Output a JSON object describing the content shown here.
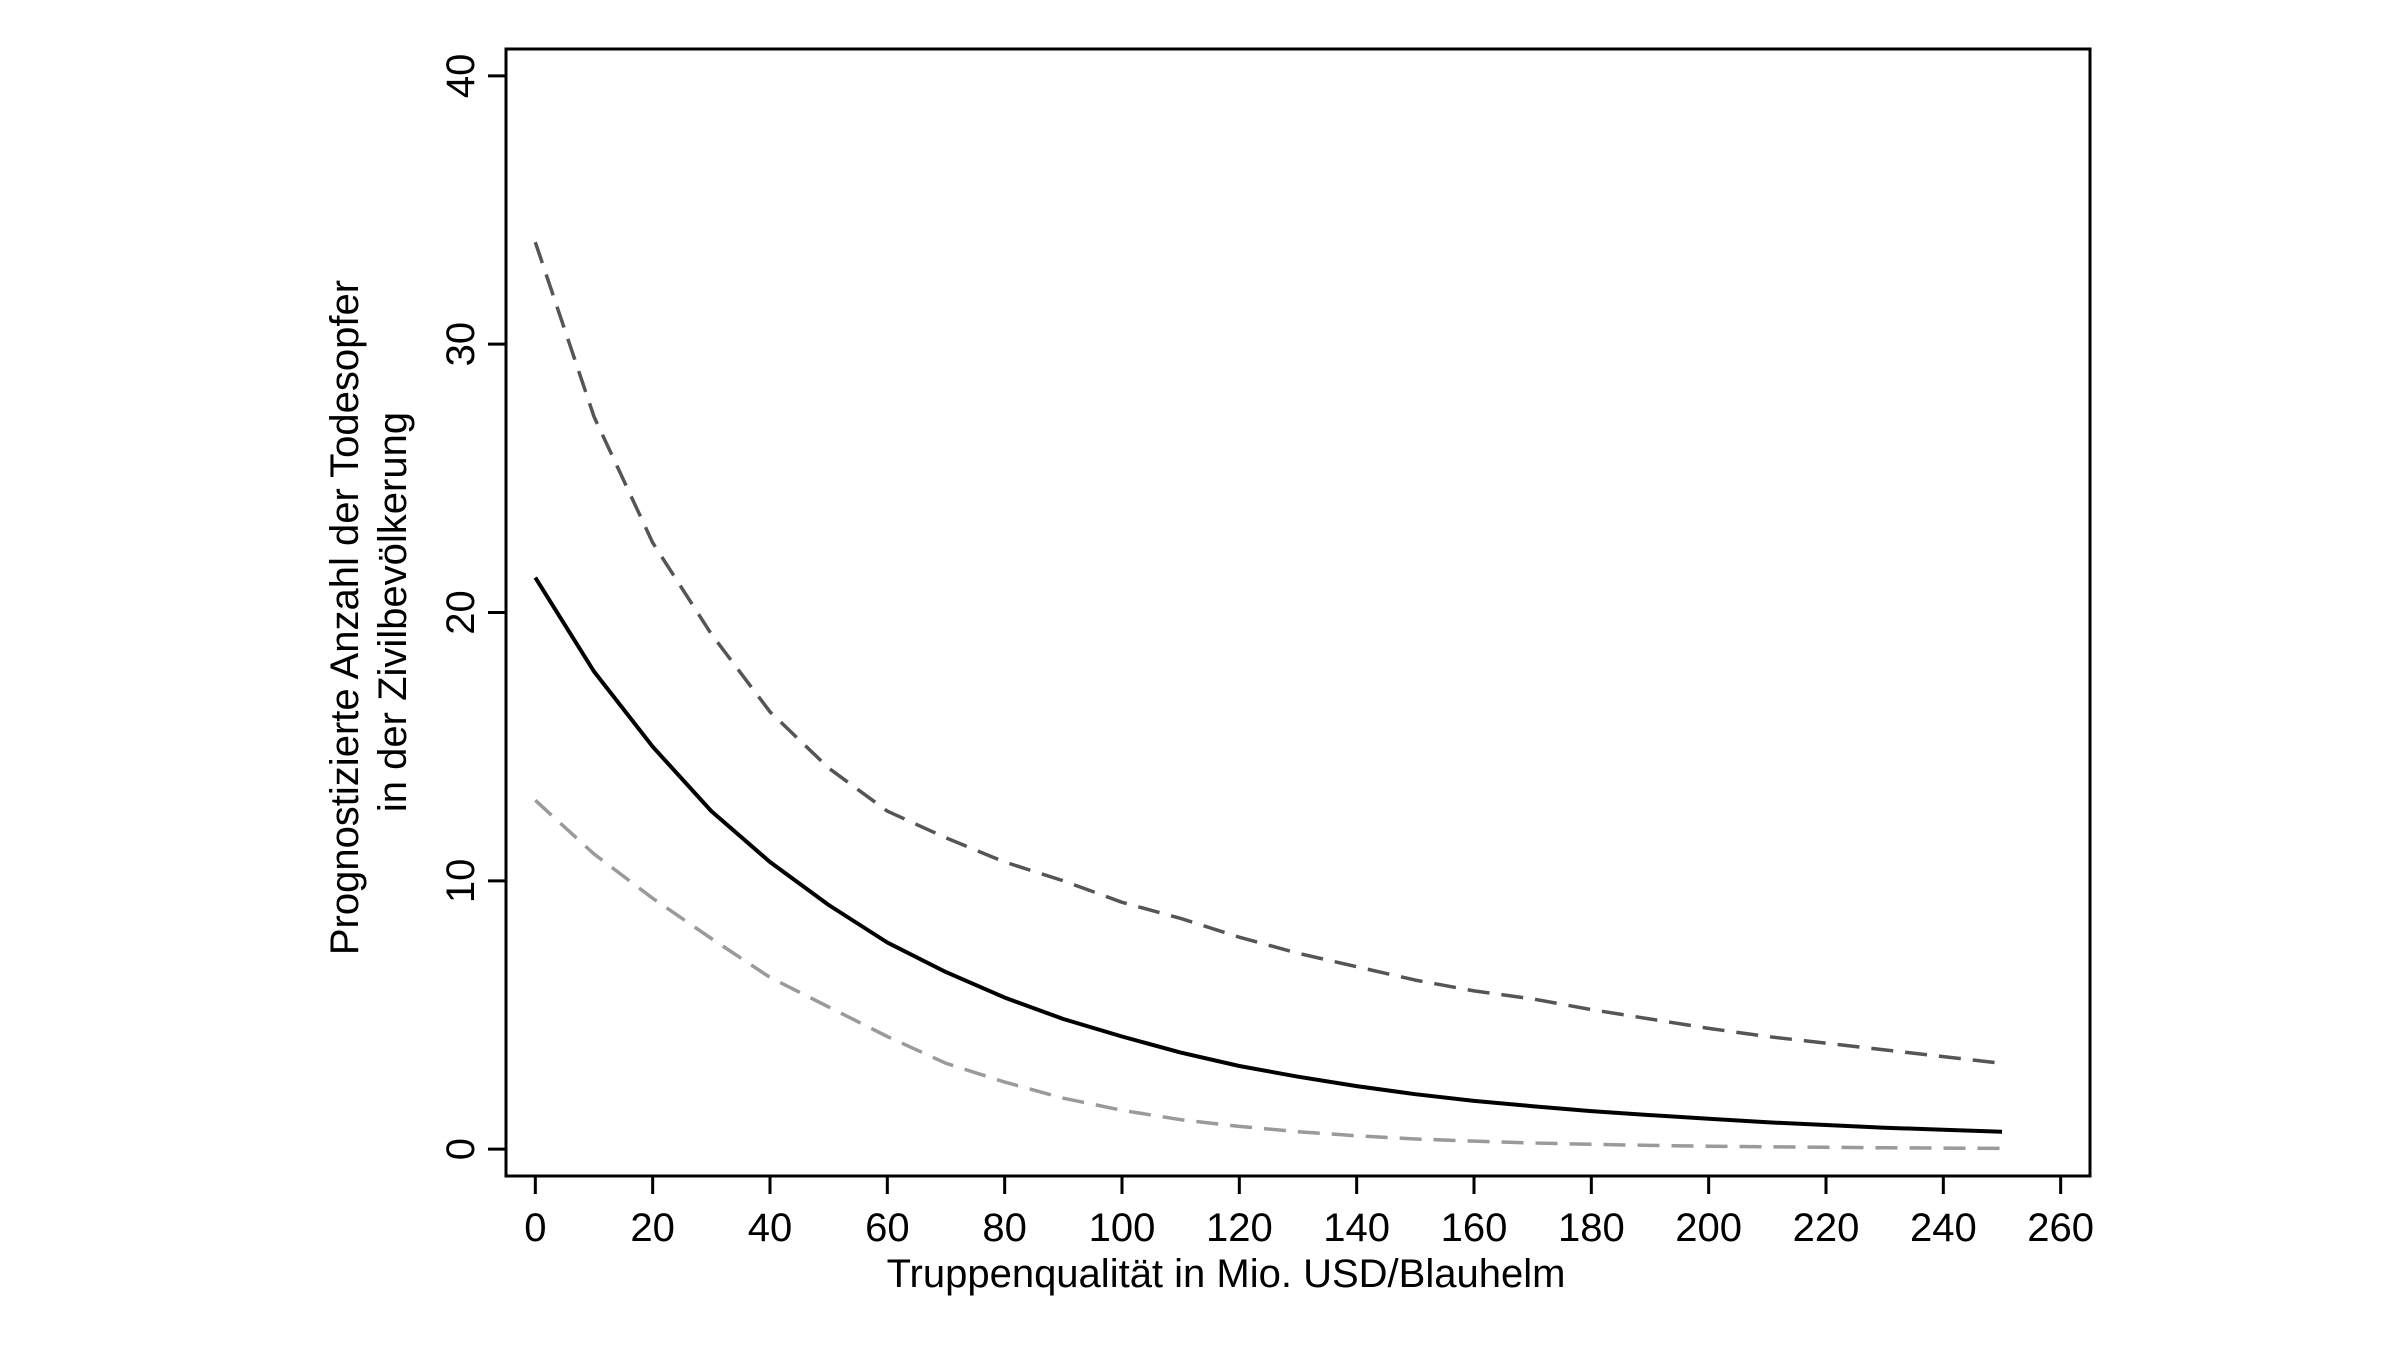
{
  "chart_data": {
    "type": "line",
    "title": "",
    "xlabel": "Truppenqualität in Mio. USD/Blauhelm",
    "ylabel_lines": [
      "Prognostizierte Anzahl der Todesopfer",
      "in der Zivilbevölkerung"
    ],
    "xlim": [
      -5,
      265
    ],
    "ylim": [
      -1,
      41
    ],
    "xticks": [
      0,
      20,
      40,
      60,
      80,
      100,
      120,
      140,
      160,
      180,
      200,
      220,
      240,
      260
    ],
    "yticks": [
      0,
      10,
      20,
      30,
      40
    ],
    "grid": false,
    "legend": "none",
    "x": [
      0,
      10,
      20,
      30,
      40,
      50,
      60,
      70,
      80,
      90,
      100,
      110,
      120,
      130,
      140,
      150,
      160,
      170,
      180,
      190,
      200,
      210,
      220,
      230,
      240,
      250
    ],
    "series": [
      {
        "role": "estimate",
        "color": "#000000",
        "dashed": false,
        "values": [
          21.3,
          17.8,
          15.0,
          12.6,
          10.7,
          9.1,
          7.7,
          6.6,
          5.65,
          4.85,
          4.2,
          3.6,
          3.1,
          2.7,
          2.35,
          2.05,
          1.8,
          1.6,
          1.42,
          1.27,
          1.13,
          1.0,
          0.9,
          0.8,
          0.72,
          0.65
        ]
      },
      {
        "role": "upper-bound",
        "color": "#555555",
        "dashed": true,
        "values": [
          33.8,
          27.3,
          22.6,
          19.2,
          16.3,
          14.2,
          12.6,
          11.6,
          10.7,
          10.0,
          9.2,
          8.6,
          7.9,
          7.3,
          6.8,
          6.3,
          5.9,
          5.6,
          5.2,
          4.85,
          4.5,
          4.2,
          3.95,
          3.7,
          3.45,
          3.2
        ]
      },
      {
        "role": "lower-bound",
        "color": "#9a9a9a",
        "dashed": true,
        "values": [
          13.0,
          11.0,
          9.35,
          7.85,
          6.4,
          5.3,
          4.2,
          3.2,
          2.5,
          1.9,
          1.45,
          1.1,
          0.85,
          0.65,
          0.5,
          0.38,
          0.3,
          0.23,
          0.18,
          0.14,
          0.11,
          0.09,
          0.07,
          0.05,
          0.04,
          0.03
        ]
      }
    ]
  }
}
